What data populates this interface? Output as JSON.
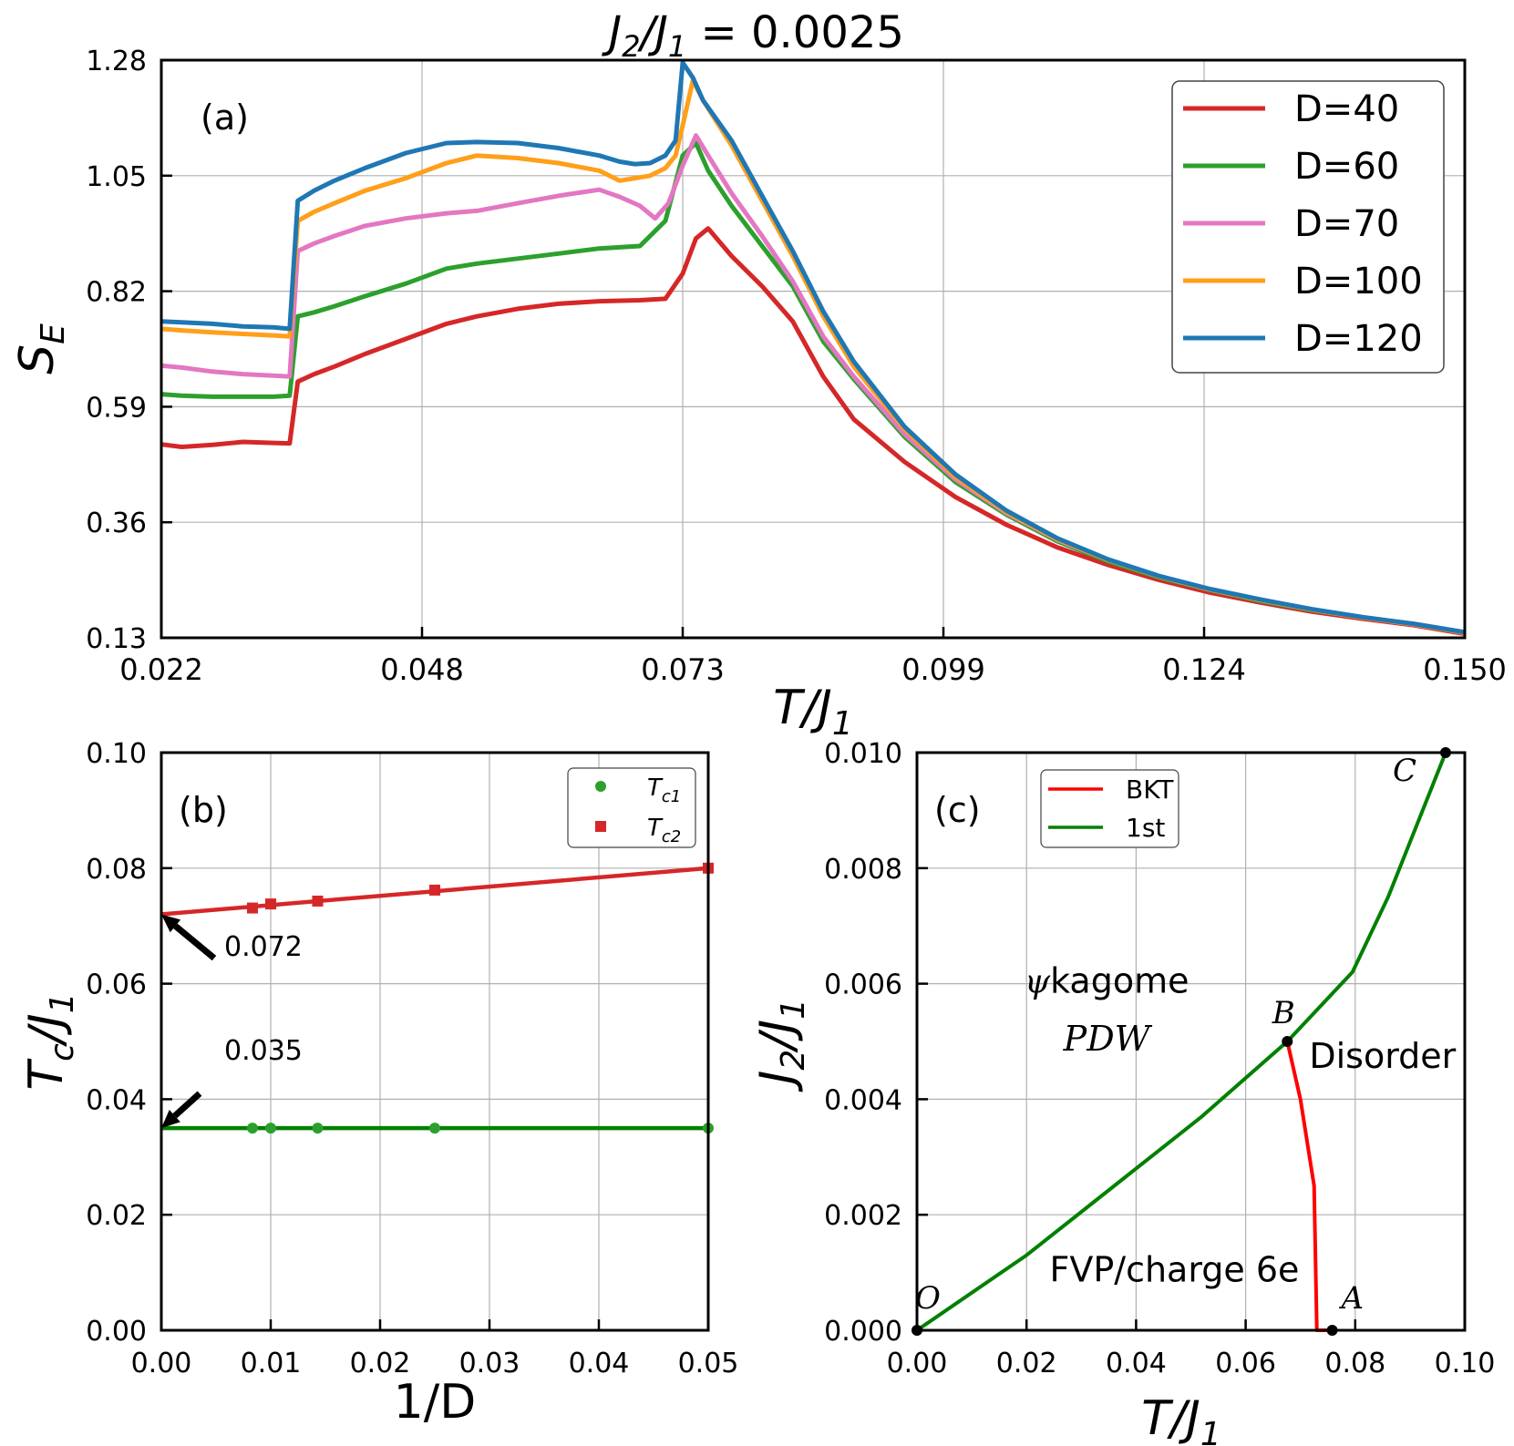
{
  "suptitle": {
    "main": "J",
    "sub1": "2",
    "slash": "/J",
    "sub2": "1",
    "rest": " = 0.0025"
  },
  "colors": {
    "D40": "#d62728",
    "D60": "#2ca02c",
    "D70": "#e377c2",
    "D100": "#ff9f1a",
    "D120": "#1f77b4",
    "bkt": "#ff0000",
    "first": "#008000",
    "grid": "#b0b0b0",
    "black": "#000000"
  },
  "chart_data": [
    {
      "panel": "a",
      "type": "line",
      "label": "(a)",
      "xlabel_main": "T/J",
      "xlabel_sub": "1",
      "ylabel_main": "S",
      "ylabel_sub": "E",
      "xlim": [
        0.022,
        0.15
      ],
      "ylim": [
        0.13,
        1.28
      ],
      "xticks": [
        "0.022",
        "0.048",
        "0.073",
        "0.099",
        "0.124",
        "0.150"
      ],
      "xtick_values": [
        0.022,
        0.0476,
        0.0732,
        0.0988,
        0.1244,
        0.15
      ],
      "yticks": [
        "0.13",
        "0.36",
        "0.59",
        "0.82",
        "1.05",
        "1.28"
      ],
      "ytick_values": [
        0.13,
        0.36,
        0.59,
        0.82,
        1.05,
        1.28
      ],
      "legend_position": "top-right",
      "series": [
        {
          "name": "D=40",
          "color_key": "D40",
          "x": [
            0.022,
            0.024,
            0.027,
            0.03,
            0.033,
            0.0346,
            0.0354,
            0.037,
            0.039,
            0.042,
            0.046,
            0.05,
            0.053,
            0.057,
            0.061,
            0.065,
            0.069,
            0.0715,
            0.0732,
            0.0745,
            0.0757,
            0.078,
            0.081,
            0.084,
            0.087,
            0.09,
            0.095,
            0.1,
            0.105,
            0.11,
            0.115,
            0.12,
            0.125,
            0.13,
            0.135,
            0.14,
            0.145,
            0.15
          ],
          "y": [
            0.515,
            0.51,
            0.514,
            0.52,
            0.518,
            0.517,
            0.64,
            0.655,
            0.67,
            0.695,
            0.725,
            0.755,
            0.77,
            0.785,
            0.795,
            0.8,
            0.802,
            0.805,
            0.855,
            0.925,
            0.945,
            0.89,
            0.83,
            0.76,
            0.65,
            0.565,
            0.48,
            0.41,
            0.355,
            0.31,
            0.275,
            0.245,
            0.22,
            0.2,
            0.182,
            0.168,
            0.155,
            0.138
          ]
        },
        {
          "name": "D=60",
          "color_key": "D60",
          "x": [
            0.022,
            0.024,
            0.027,
            0.03,
            0.033,
            0.0346,
            0.0354,
            0.037,
            0.039,
            0.042,
            0.046,
            0.05,
            0.053,
            0.057,
            0.061,
            0.065,
            0.069,
            0.0715,
            0.0732,
            0.0745,
            0.0757,
            0.078,
            0.081,
            0.084,
            0.087,
            0.09,
            0.095,
            0.1,
            0.105,
            0.11,
            0.115,
            0.12,
            0.125,
            0.13,
            0.135,
            0.14,
            0.145,
            0.15
          ],
          "y": [
            0.615,
            0.612,
            0.61,
            0.61,
            0.61,
            0.612,
            0.77,
            0.778,
            0.79,
            0.81,
            0.835,
            0.865,
            0.875,
            0.885,
            0.895,
            0.905,
            0.91,
            0.96,
            1.09,
            1.115,
            1.06,
            0.99,
            0.91,
            0.83,
            0.72,
            0.645,
            0.53,
            0.44,
            0.375,
            0.322,
            0.282,
            0.25,
            0.225,
            0.203,
            0.185,
            0.17,
            0.157,
            0.14
          ]
        },
        {
          "name": "D=70",
          "color_key": "D70",
          "x": [
            0.022,
            0.024,
            0.027,
            0.03,
            0.033,
            0.0346,
            0.0354,
            0.037,
            0.039,
            0.042,
            0.046,
            0.05,
            0.053,
            0.057,
            0.061,
            0.065,
            0.067,
            0.069,
            0.0705,
            0.0718,
            0.0732,
            0.0745,
            0.0757,
            0.078,
            0.081,
            0.084,
            0.087,
            0.09,
            0.095,
            0.1,
            0.105,
            0.11,
            0.115,
            0.12,
            0.125,
            0.13,
            0.135,
            0.14,
            0.145,
            0.15
          ],
          "y": [
            0.672,
            0.668,
            0.66,
            0.655,
            0.652,
            0.65,
            0.9,
            0.915,
            0.93,
            0.95,
            0.965,
            0.975,
            0.98,
            0.995,
            1.01,
            1.022,
            1.008,
            0.99,
            0.965,
            0.995,
            1.07,
            1.13,
            1.09,
            1.015,
            0.93,
            0.84,
            0.73,
            0.65,
            0.535,
            0.445,
            0.378,
            0.325,
            0.285,
            0.252,
            0.226,
            0.205,
            0.186,
            0.17,
            0.157,
            0.14
          ]
        },
        {
          "name": "D=100",
          "color_key": "D100",
          "x": [
            0.022,
            0.024,
            0.027,
            0.03,
            0.033,
            0.0346,
            0.0354,
            0.037,
            0.039,
            0.042,
            0.046,
            0.05,
            0.053,
            0.057,
            0.061,
            0.065,
            0.067,
            0.0685,
            0.07,
            0.0715,
            0.0725,
            0.0732,
            0.0742,
            0.0752,
            0.078,
            0.081,
            0.084,
            0.087,
            0.09,
            0.095,
            0.1,
            0.105,
            0.11,
            0.115,
            0.12,
            0.125,
            0.13,
            0.135,
            0.14,
            0.145,
            0.15
          ],
          "y": [
            0.745,
            0.742,
            0.738,
            0.735,
            0.732,
            0.73,
            0.96,
            0.978,
            0.995,
            1.02,
            1.045,
            1.075,
            1.09,
            1.085,
            1.075,
            1.06,
            1.04,
            1.045,
            1.05,
            1.065,
            1.09,
            1.15,
            1.24,
            1.2,
            1.11,
            1.0,
            0.89,
            0.77,
            0.67,
            0.545,
            0.45,
            0.38,
            0.326,
            0.285,
            0.252,
            0.226,
            0.205,
            0.186,
            0.17,
            0.157,
            0.14
          ]
        },
        {
          "name": "D=120",
          "color_key": "D120",
          "x": [
            0.022,
            0.024,
            0.027,
            0.03,
            0.033,
            0.0346,
            0.0354,
            0.037,
            0.039,
            0.042,
            0.046,
            0.05,
            0.053,
            0.057,
            0.061,
            0.065,
            0.067,
            0.0685,
            0.07,
            0.0715,
            0.0725,
            0.0732,
            0.0742,
            0.0752,
            0.078,
            0.081,
            0.084,
            0.087,
            0.09,
            0.095,
            0.1,
            0.105,
            0.11,
            0.115,
            0.12,
            0.125,
            0.13,
            0.135,
            0.14,
            0.145,
            0.15
          ],
          "y": [
            0.76,
            0.758,
            0.755,
            0.75,
            0.748,
            0.745,
            1.0,
            1.02,
            1.04,
            1.065,
            1.095,
            1.115,
            1.117,
            1.115,
            1.105,
            1.09,
            1.078,
            1.073,
            1.075,
            1.09,
            1.12,
            1.275,
            1.245,
            1.2,
            1.12,
            1.01,
            0.9,
            0.78,
            0.68,
            0.55,
            0.455,
            0.383,
            0.328,
            0.286,
            0.253,
            0.227,
            0.206,
            0.187,
            0.171,
            0.158,
            0.141
          ]
        }
      ]
    },
    {
      "panel": "b",
      "type": "scatter",
      "label": "(b)",
      "xlabel": "1/D",
      "ylabel_main": "T",
      "ylabel_sub": "c",
      "ylabel_rest": "/J",
      "ylabel_sub2": "1",
      "xlim": [
        0.0,
        0.05
      ],
      "ylim": [
        0.0,
        0.1
      ],
      "xticks": [
        "0.00",
        "0.01",
        "0.02",
        "0.03",
        "0.04",
        "0.05"
      ],
      "xtick_values": [
        0.0,
        0.01,
        0.02,
        0.03,
        0.04,
        0.05
      ],
      "yticks": [
        "0.00",
        "0.02",
        "0.04",
        "0.06",
        "0.08",
        "0.10"
      ],
      "ytick_values": [
        0.0,
        0.02,
        0.04,
        0.06,
        0.08,
        0.1
      ],
      "legend_position": "top-right",
      "series": [
        {
          "name": "T",
          "name_sub": "c1",
          "marker": "circle",
          "color_key": "D60",
          "x": [
            0.00833,
            0.01,
            0.01429,
            0.025,
            0.05
          ],
          "y": [
            0.035,
            0.035,
            0.035,
            0.035,
            0.035
          ],
          "fit": {
            "x": [
              0.0,
              0.05
            ],
            "y": [
              0.035,
              0.035
            ]
          }
        },
        {
          "name": "T",
          "name_sub": "c2",
          "marker": "square",
          "color_key": "D40",
          "x": [
            0.00833,
            0.01,
            0.01429,
            0.025,
            0.05
          ],
          "y": [
            0.0731,
            0.0738,
            0.0743,
            0.0762,
            0.08
          ],
          "fit": {
            "x": [
              0.0,
              0.05
            ],
            "y": [
              0.072,
              0.08
            ]
          }
        }
      ],
      "annotations": [
        {
          "text": "0.072",
          "point": [
            0.0,
            0.072
          ]
        },
        {
          "text": "0.035",
          "point": [
            0.0,
            0.035
          ]
        }
      ]
    },
    {
      "panel": "c",
      "type": "line",
      "label": "(c)",
      "xlabel_main": "T/J",
      "xlabel_sub": "1",
      "ylabel_main": "J",
      "ylabel_sub": "2",
      "ylabel_rest": "/J",
      "ylabel_sub2": "1",
      "xlim": [
        0.0,
        0.1
      ],
      "ylim": [
        0.0,
        0.01
      ],
      "xticks": [
        "0.00",
        "0.02",
        "0.04",
        "0.06",
        "0.08",
        "0.10"
      ],
      "xtick_values": [
        0.0,
        0.02,
        0.04,
        0.06,
        0.08,
        0.1
      ],
      "yticks": [
        "0.000",
        "0.002",
        "0.004",
        "0.006",
        "0.008",
        "0.010"
      ],
      "ytick_values": [
        0.0,
        0.002,
        0.004,
        0.006,
        0.008,
        0.01
      ],
      "legend_position": "top-left",
      "series": [
        {
          "name": "BKT",
          "color_key": "bkt",
          "x": [
            0.0758,
            0.073,
            0.0725,
            0.07,
            0.0676
          ],
          "y": [
            0.0,
            0.0,
            0.0025,
            0.004,
            0.005
          ]
        },
        {
          "name": "1st",
          "color_key": "first",
          "x": [
            0.0,
            0.02,
            0.036,
            0.052,
            0.0676,
            0.0795,
            0.086,
            0.0965
          ],
          "y": [
            0.0,
            0.0013,
            0.0025,
            0.0037,
            0.005,
            0.0062,
            0.0075,
            0.01
          ]
        }
      ],
      "points": [
        {
          "name": "O",
          "x": 0.0,
          "y": 0.0
        },
        {
          "name": "A",
          "x": 0.0758,
          "y": 0.0
        },
        {
          "name": "B",
          "x": 0.0676,
          "y": 0.005
        },
        {
          "name": "C",
          "x": 0.0965,
          "y": 0.01
        }
      ],
      "region_labels": [
        {
          "psi": "ψ",
          "text": "kagome",
          "x": 0.018,
          "y": 0.006
        },
        {
          "text": "PDW",
          "x": 0.018,
          "y": 0.005,
          "style": "italic"
        },
        {
          "text": "Disorder",
          "x": 0.085,
          "y": 0.0047
        },
        {
          "text": "FVP/charge 6e",
          "x": 0.047,
          "y": 0.001
        }
      ]
    }
  ]
}
